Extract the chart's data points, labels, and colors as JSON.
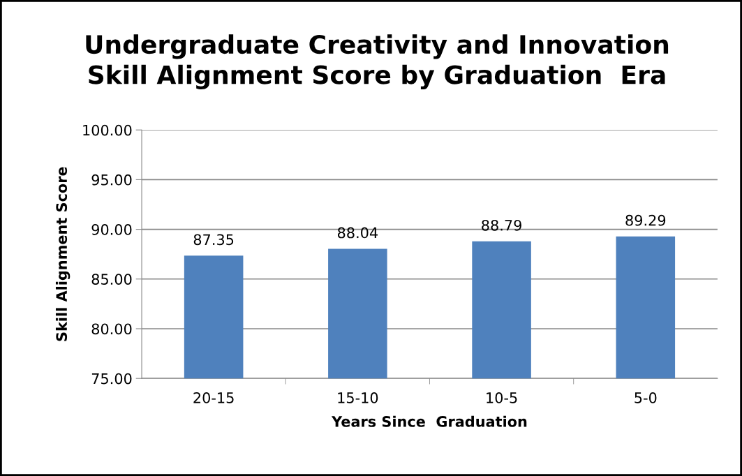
{
  "chart_data": {
    "type": "bar",
    "title": "Undergraduate Creativity and Innovation\nSkill Alignment Score by Graduation  Era",
    "xlabel": "Years Since  Graduation",
    "ylabel": "Skill Alignment Score",
    "categories": [
      "20-15",
      "15-10",
      "10-5",
      "5-0"
    ],
    "values": [
      87.35,
      88.04,
      88.79,
      89.29
    ],
    "color": "#4f81bd",
    "ylim": [
      75,
      100
    ],
    "yticks": [
      {
        "value": 75,
        "label": "75.00"
      },
      {
        "value": 80,
        "label": "80.00"
      },
      {
        "value": 85,
        "label": "85.00"
      },
      {
        "value": 90,
        "label": "90.00"
      },
      {
        "value": 95,
        "label": "95.00"
      },
      {
        "value": 100,
        "label": "100.00"
      }
    ],
    "grid": "y",
    "data_labels": true,
    "legend": false
  }
}
